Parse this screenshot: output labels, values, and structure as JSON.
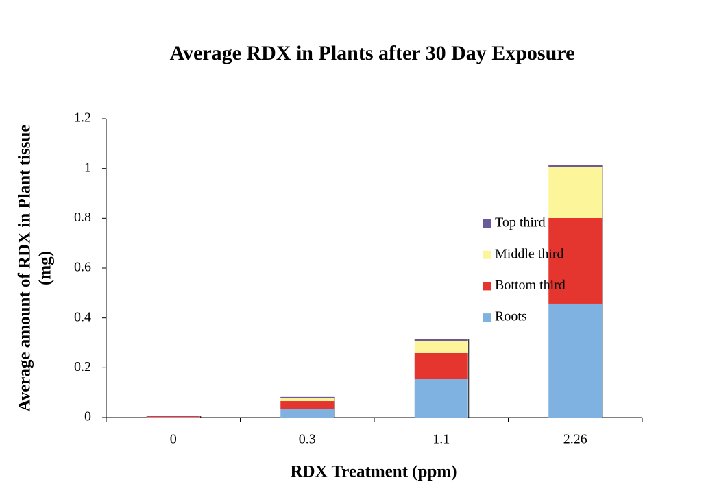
{
  "chart_data": {
    "type": "bar",
    "stacked": true,
    "title": "Average RDX in Plants after 30 Day Exposure",
    "xlabel": "RDX Treatment (ppm)",
    "ylabel": [
      "Average amount of RDX in Plant tissue",
      "(mg)"
    ],
    "categories": [
      "0",
      "0.3",
      "1.1",
      "2.26"
    ],
    "series": [
      {
        "name": "Roots",
        "color": "#7fb2e0",
        "values": [
          0.002,
          0.033,
          0.154,
          0.457
        ]
      },
      {
        "name": "Bottom third",
        "color": "#e4352e",
        "values": [
          0.004,
          0.033,
          0.105,
          0.344
        ]
      },
      {
        "name": "Middle third",
        "color": "#fdf59a",
        "values": [
          0.001,
          0.011,
          0.049,
          0.204
        ]
      },
      {
        "name": "Top third",
        "color": "#6b5a9a",
        "values": [
          0.001,
          0.006,
          0.006,
          0.008
        ]
      }
    ],
    "ylim": [
      0,
      1.2
    ],
    "yticks": [
      0,
      0.2,
      0.4,
      0.6,
      0.8,
      1,
      1.2
    ],
    "grid": false,
    "legend": "right"
  }
}
